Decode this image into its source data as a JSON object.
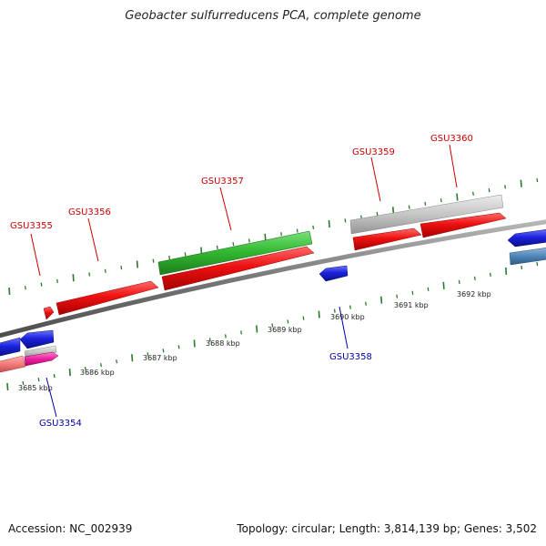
{
  "title": "Geobacter sulfurreducens PCA, complete genome",
  "footer": {
    "accession": "Accession: NC_002939",
    "summary": "Topology: circular; Length: 3,814,139 bp; Genes: 3,502"
  },
  "colors": {
    "backbone": "#7a7a7a",
    "tick": "#2a7a2a",
    "label_top": "#cc0000",
    "label_bottom": "#0000aa",
    "red_gene": "#ee1111",
    "green_gene": "#33bb33",
    "gray_gene": "#c4c4c4",
    "blue_gene": "#1a22dd",
    "steel_gene": "#4f86b8",
    "salmon_gene": "#f07a7a",
    "magenta_gene": "#ee1ea0"
  },
  "genes": [
    {
      "id": "GSU3355",
      "label": "GSU3355",
      "label_color": "top",
      "kind": "red"
    },
    {
      "id": "GSU3356",
      "label": "GSU3356",
      "label_color": "top",
      "kind": "red"
    },
    {
      "id": "GSU3357",
      "label": "GSU3357",
      "label_color": "top",
      "kind": "green"
    },
    {
      "id": "GSU3359",
      "label": "GSU3359",
      "label_color": "top",
      "kind": "red"
    },
    {
      "id": "GSU3360",
      "label": "GSU3360",
      "label_color": "top",
      "kind": "red"
    },
    {
      "id": "GSU3354",
      "label": "GSU3354",
      "label_color": "bottom",
      "kind": "pink"
    },
    {
      "id": "GSU3358",
      "label": "GSU3358",
      "label_color": "bottom",
      "kind": "blue"
    }
  ],
  "scale_labels": [
    "3685 kbp",
    "3686 kbp",
    "3687 kbp",
    "3688 kbp",
    "3689 kbp",
    "3690 kbp",
    "3691 kbp",
    "3692 kbp"
  ]
}
